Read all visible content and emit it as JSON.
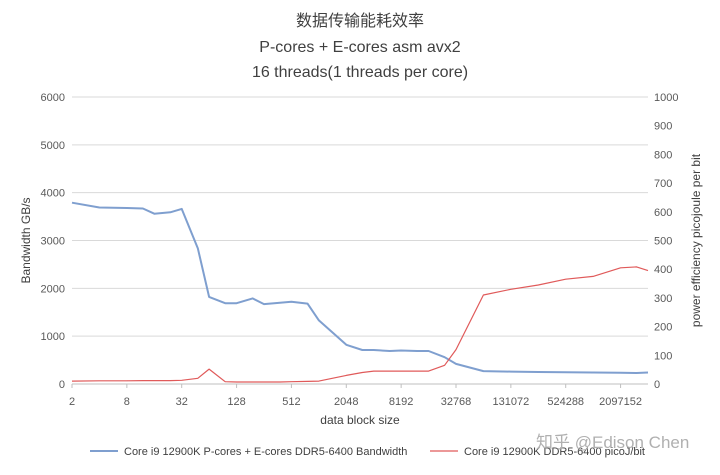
{
  "chart_data": {
    "type": "line",
    "title_lines": [
      "数据传输能耗效率",
      "P-cores + E-cores asm avx2",
      "16 threads(1 threads per core)"
    ],
    "xlabel": "data block size",
    "ylabel_left": "Bandwidth GB/s",
    "ylabel_right": "power efficiency picojoule per bit",
    "x_tick_labels": [
      "2",
      "8",
      "32",
      "128",
      "512",
      "2048",
      "8192",
      "32768",
      "131072",
      "524288",
      "2097152"
    ],
    "y_left_ticks": [
      "0",
      "1000",
      "2000",
      "3000",
      "4000",
      "5000",
      "6000"
    ],
    "y_right_ticks": [
      "0",
      "100",
      "200",
      "300",
      "400",
      "500",
      "600",
      "700",
      "800",
      "900",
      "1000"
    ],
    "y_left_range": [
      0,
      6000
    ],
    "y_right_range": [
      0,
      1000
    ],
    "x_scale": "log2",
    "x_range": [
      2,
      4194304
    ],
    "grid": true,
    "legend_position": "bottom",
    "series": [
      {
        "name": "Core i9 12900K P-cores + E-cores DDR5-6400 Bandwidth",
        "axis": "left",
        "color": "#7f9fcf",
        "x": [
          2,
          4,
          8,
          12,
          16,
          24,
          32,
          48,
          64,
          96,
          128,
          192,
          256,
          384,
          512,
          768,
          1024,
          2048,
          3072,
          4096,
          6144,
          8192,
          12288,
          16384,
          24576,
          32768,
          65536,
          131072,
          262144,
          524288,
          1048576,
          2097152,
          3145728,
          4194304
        ],
        "y": [
          3790,
          3690,
          3680,
          3670,
          3560,
          3590,
          3660,
          2840,
          1820,
          1690,
          1690,
          1790,
          1670,
          1700,
          1720,
          1680,
          1330,
          820,
          710,
          710,
          690,
          700,
          690,
          690,
          560,
          420,
          270,
          260,
          250,
          245,
          240,
          235,
          230,
          240
        ]
      },
      {
        "name": "Core i9 12900K DDR5-6400 picoJ/bit",
        "axis": "right",
        "color": "#e05a5a",
        "x": [
          2,
          4,
          8,
          12,
          16,
          24,
          32,
          48,
          64,
          96,
          128,
          192,
          256,
          384,
          512,
          768,
          1024,
          2048,
          3072,
          4096,
          6144,
          8192,
          12288,
          16384,
          24576,
          32768,
          65536,
          131072,
          262144,
          524288,
          1048576,
          2097152,
          3145728,
          4194304
        ],
        "y": [
          10,
          11,
          11,
          12,
          12,
          12,
          13,
          20,
          52,
          8,
          7,
          7,
          7,
          7,
          8,
          9,
          10,
          30,
          40,
          45,
          45,
          45,
          45,
          45,
          65,
          120,
          310,
          330,
          345,
          365,
          375,
          405,
          408,
          395
        ]
      }
    ]
  },
  "watermark": "知乎 @Edison Chen"
}
